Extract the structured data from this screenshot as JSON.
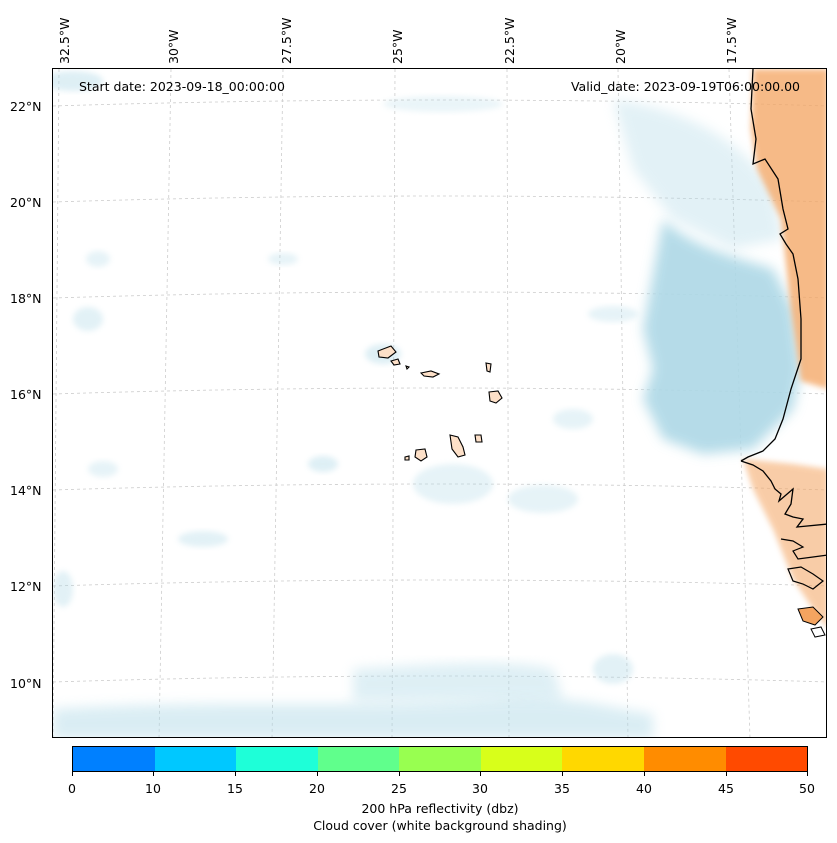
{
  "map": {
    "start_date": "Start date: 2023-09-18_00:00:00",
    "valid_date": "Valid_date: 2023-09-19T06:00:00.00",
    "lon_labels": [
      "32.5°W",
      "30°W",
      "27.5°W",
      "25°W",
      "22.5°W",
      "20°W",
      "17.5°W"
    ],
    "lat_labels": [
      "22°N",
      "20°N",
      "18°N",
      "16°N",
      "14°N",
      "12°N",
      "10°N"
    ],
    "region": "Cape Verde Islands and West African coast"
  },
  "colorbar": {
    "ticks": [
      "0",
      "10",
      "15",
      "20",
      "25",
      "30",
      "35",
      "40",
      "45",
      "50"
    ],
    "colors": [
      "#0080ff",
      "#00c8ff",
      "#1effd8",
      "#60ff8c",
      "#98ff50",
      "#d8ff1a",
      "#ffd800",
      "#ff8c00",
      "#ff4a00"
    ],
    "label_line1": "200 hPa reflectivity (dbz)",
    "label_line2": "Cloud cover (white background shading)"
  },
  "colors": {
    "cloud": "#add8e6",
    "land": "#f4a460",
    "grid": "#cccccc"
  }
}
